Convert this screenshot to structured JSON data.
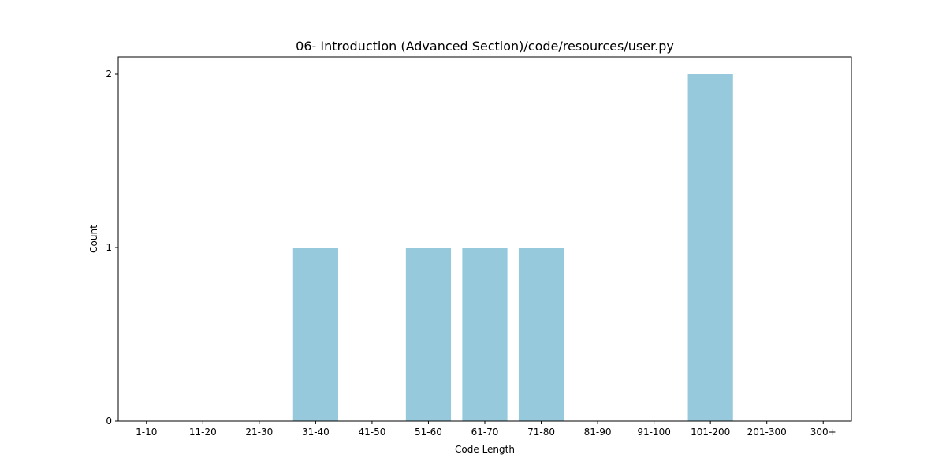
{
  "chart_data": {
    "type": "bar",
    "title": "06- Introduction (Advanced Section)/code/resources/user.py",
    "xlabel": "Code Length",
    "ylabel": "Count",
    "categories": [
      "1-10",
      "11-20",
      "21-30",
      "31-40",
      "41-50",
      "51-60",
      "61-70",
      "71-80",
      "81-90",
      "91-100",
      "101-200",
      "201-300",
      "300+"
    ],
    "values": [
      0,
      0,
      0,
      1,
      0,
      1,
      1,
      1,
      0,
      0,
      2,
      0,
      0
    ],
    "yticks": [
      0,
      1,
      2
    ],
    "ylim": [
      0,
      2.1
    ],
    "bar_color": "#96c9dc",
    "grid": false,
    "legend": false
  }
}
